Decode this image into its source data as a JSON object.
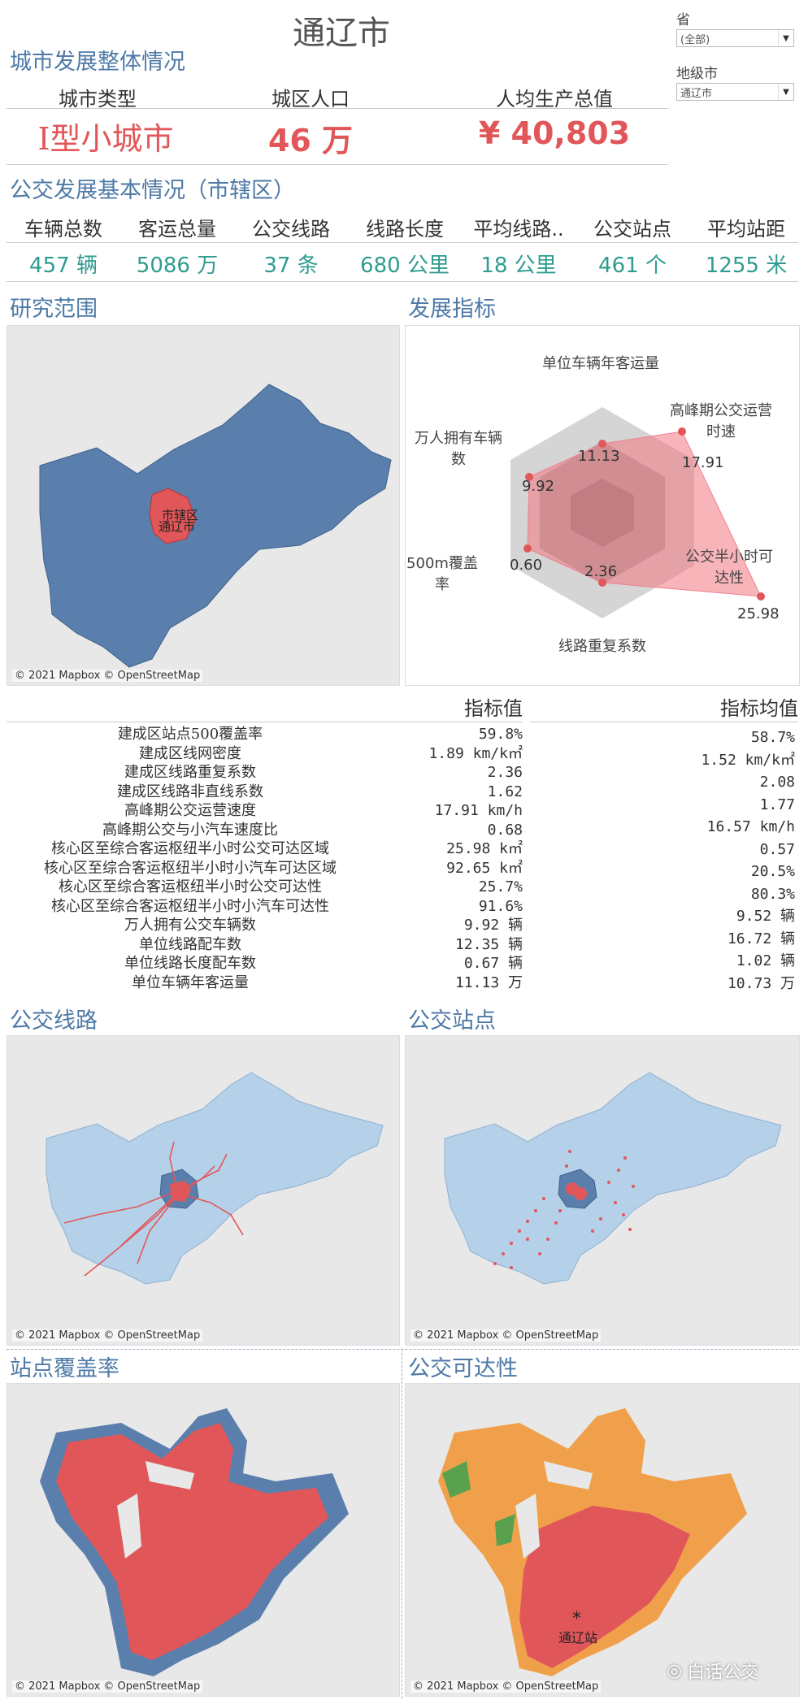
{
  "city": {
    "title": "通辽市"
  },
  "filters": {
    "province_label": "省",
    "province_value": "(全部)",
    "city_label": "地级市",
    "city_value": "通辽市"
  },
  "overall": {
    "section_title": "城市发展整体情况",
    "headers": [
      "城市类型",
      "城区人口",
      "人均生产总值"
    ],
    "values": [
      "I型小城市",
      "46 万",
      "¥ 40,803"
    ]
  },
  "bus_basic": {
    "section_title": "公交发展基本情况（市辖区）",
    "headers": [
      "车辆总数",
      "客运总量",
      "公交线路",
      "线路长度",
      "平均线路..",
      "公交站点",
      "平均站距"
    ],
    "values": [
      "457 辆",
      "5086 万",
      "37 条",
      "680 公里",
      "18 公里",
      "461 个",
      "1255 米"
    ]
  },
  "study_area": {
    "section_title": "研究范围",
    "district_label_1": "市辖区",
    "district_label_2": "通辽市",
    "attribution": "© 2021 Mapbox © OpenStreetMap"
  },
  "development": {
    "section_title": "发展指标",
    "axes": [
      "单位车辆年客运量",
      "高峰期公交运营时速",
      "公交半小时可达性",
      "线路重复系数",
      "500m覆盖率",
      "万人拥有车辆数"
    ],
    "values": [
      "11.13",
      "17.91",
      "25.98",
      "2.36",
      "0.60",
      "9.92"
    ]
  },
  "indicators": {
    "value_header": "指标值",
    "avg_header": "指标均值",
    "rows": [
      {
        "name": "建成区站点500覆盖率",
        "value": "59.8%",
        "avg": "58.7%"
      },
      {
        "name": "建成区线网密度",
        "value": "1.89 km/k㎡",
        "avg": "1.52 km/k㎡"
      },
      {
        "name": "建成区线路重复系数",
        "value": "2.36",
        "avg": "2.08"
      },
      {
        "name": "建成区线路非直线系数",
        "value": "1.62",
        "avg": "1.77"
      },
      {
        "name": "高峰期公交运营速度",
        "value": "17.91 km/h",
        "avg": "16.57 km/h"
      },
      {
        "name": "高峰期公交与小汽车速度比",
        "value": "0.68",
        "avg": "0.57"
      },
      {
        "name": "核心区至综合客运枢纽半小时公交可达区域",
        "value": "25.98 k㎡",
        "avg": "20.5%"
      },
      {
        "name": "核心区至综合客运枢纽半小时小汽车可达区域",
        "value": "92.65 k㎡",
        "avg": "80.3%"
      },
      {
        "name": "核心区至综合客运枢纽半小时公交可达性",
        "value": "25.7%",
        "avg": "9.52 辆"
      },
      {
        "name": "核心区至综合客运枢纽半小时小汽车可达性",
        "value": "91.6%",
        "avg": "16.72 辆"
      },
      {
        "name": "万人拥有公交车辆数",
        "value": "9.92 辆",
        "avg": "1.02 辆"
      },
      {
        "name": "单位线路配车数",
        "value": "12.35 辆",
        "avg": "10.73 万"
      },
      {
        "name": "单位线路长度配车数",
        "value": "0.67 辆",
        "avg": ""
      },
      {
        "name": "单位车辆年客运量",
        "value": "11.13 万",
        "avg": ""
      }
    ]
  },
  "bus_lines": {
    "section_title": "公交线路",
    "attribution": "© 2021 Mapbox © OpenStreetMap"
  },
  "bus_stops": {
    "section_title": "公交站点",
    "attribution": "© 2021 Mapbox © OpenStreetMap"
  },
  "coverage": {
    "section_title": "站点覆盖率",
    "attribution": "© 2021 Mapbox © OpenStreetMap"
  },
  "accessibility": {
    "section_title": "公交可达性",
    "station_label": "通辽站",
    "attribution": "© 2021 Mapbox © OpenStreetMap"
  },
  "watermark": {
    "text": "白话公交"
  },
  "colors": {
    "blue_title": "#4e79a7",
    "red": "#e15759",
    "teal": "#2f9c8f",
    "map_dark": "#5b7fad",
    "map_light": "#b5d1ea",
    "orange": "#f0a04b",
    "green": "#59a14f"
  }
}
